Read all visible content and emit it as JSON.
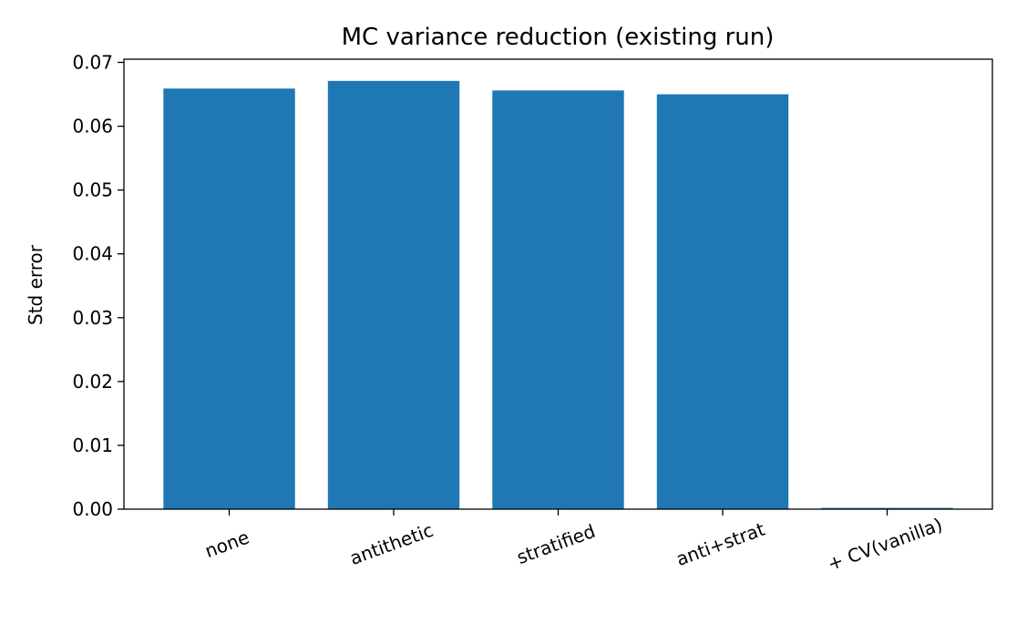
{
  "chart_data": {
    "type": "bar",
    "title": "MC variance reduction (existing run)",
    "xlabel": "",
    "ylabel": "Std error",
    "categories": [
      "none",
      "antithetic",
      "stratified",
      "anti+strat",
      "+ CV(vanilla)"
    ],
    "values": [
      0.0659,
      0.0671,
      0.0656,
      0.065,
      0.0002
    ],
    "ylim": [
      0,
      0.0705
    ],
    "yticks": [
      "0.00",
      "0.01",
      "0.02",
      "0.03",
      "0.04",
      "0.05",
      "0.06",
      "0.07"
    ],
    "grid": false,
    "bar_color": "#1f77b4"
  }
}
